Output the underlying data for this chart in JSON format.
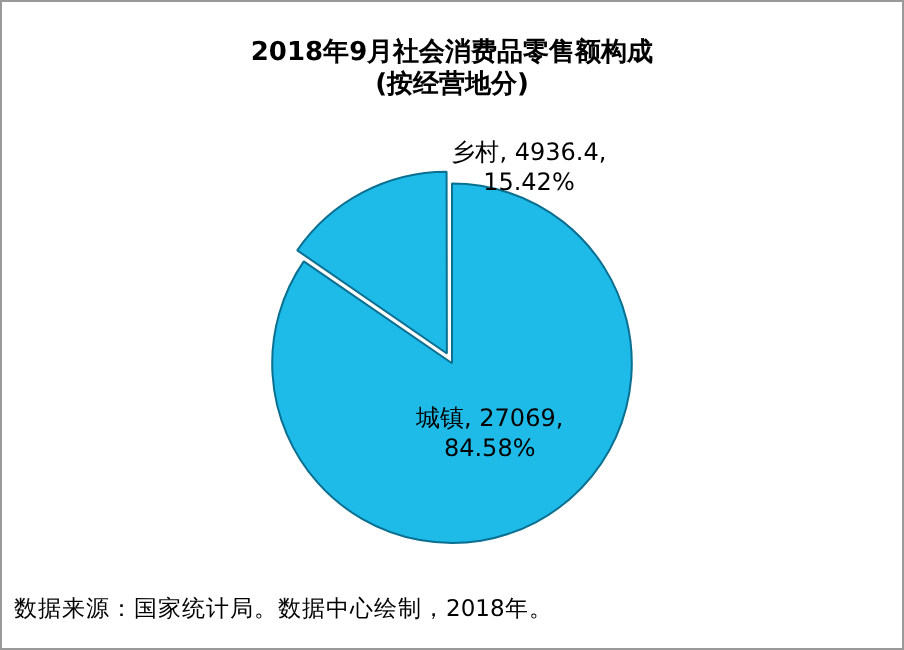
{
  "chart_data": {
    "type": "pie",
    "title": "2018年9月社会消费品零售额构成\n(按经营地分)",
    "categories": [
      "城镇",
      "乡村"
    ],
    "values": [
      27069,
      4936.4
    ],
    "colors": [
      "#1ebbe8",
      "#1ebbe8"
    ],
    "value_labels": [
      "27069,\n84.58%",
      "4936.4,\n15.42%"
    ],
    "legend": false,
    "annotations": [
      "数据来源：国家统计局。数据中心绘制，2018年。"
    ]
  }
}
